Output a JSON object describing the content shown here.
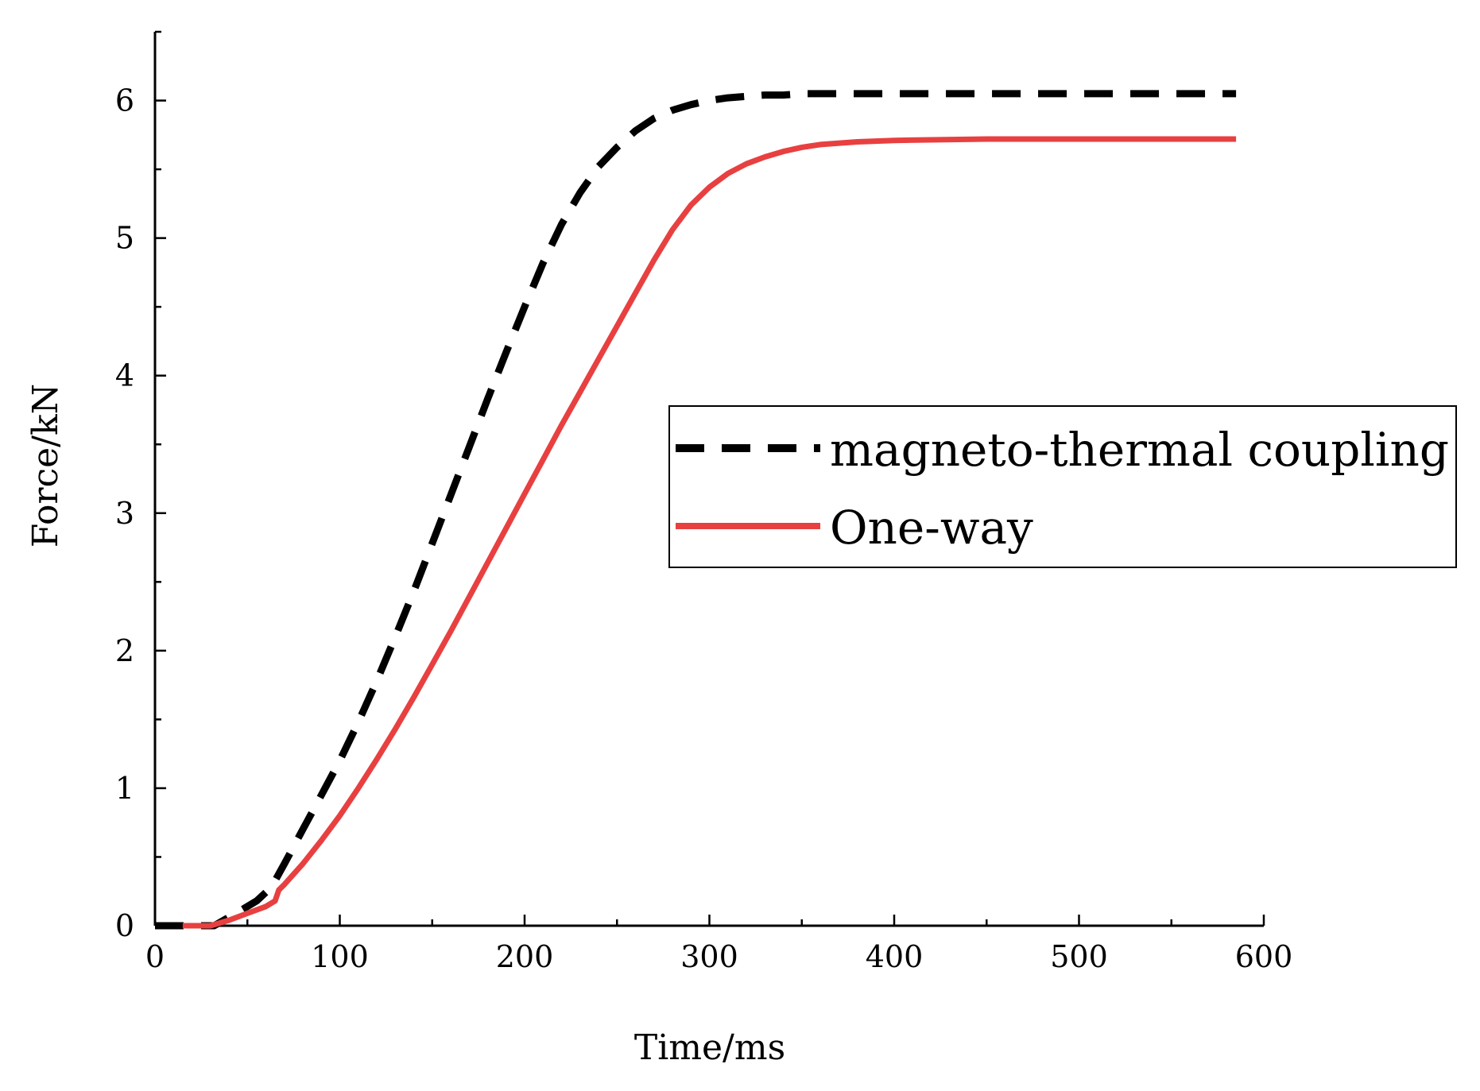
{
  "chart_data": {
    "type": "line",
    "title": "",
    "xlabel": "Time/ms",
    "ylabel": "Force/kN",
    "xlim": [
      0,
      600
    ],
    "ylim": [
      0,
      6.5
    ],
    "xticks": [
      0,
      100,
      200,
      300,
      400,
      500,
      600
    ],
    "xtick_labels": [
      "0",
      "100",
      "200",
      "300",
      "400",
      "500",
      "600"
    ],
    "yticks": [
      0,
      1,
      2,
      3,
      4,
      5,
      6
    ],
    "ytick_labels": [
      "0",
      "1",
      "2",
      "3",
      "4",
      "5",
      "6"
    ],
    "grid": false,
    "legend_position": "right-center",
    "series": [
      {
        "name": "magneto-thermal coupling",
        "color": "#000000",
        "style": "dashed",
        "x": [
          0,
          20,
          32,
          45,
          55,
          63,
          70,
          80,
          90,
          100,
          110,
          120,
          130,
          140,
          150,
          160,
          170,
          180,
          190,
          200,
          210,
          220,
          230,
          240,
          250,
          260,
          270,
          280,
          290,
          300,
          310,
          320,
          330,
          340,
          350,
          360,
          380,
          400,
          450,
          500,
          550,
          585
        ],
        "y": [
          0,
          0,
          0.0,
          0.1,
          0.18,
          0.28,
          0.45,
          0.7,
          0.95,
          1.2,
          1.48,
          1.78,
          2.1,
          2.43,
          2.78,
          3.13,
          3.48,
          3.83,
          4.17,
          4.5,
          4.82,
          5.1,
          5.33,
          5.52,
          5.66,
          5.78,
          5.87,
          5.93,
          5.97,
          6.0,
          6.02,
          6.03,
          6.04,
          6.04,
          6.05,
          6.05,
          6.05,
          6.05,
          6.05,
          6.05,
          6.05,
          6.05
        ]
      },
      {
        "name": "One-way",
        "color": "#e84040",
        "style": "solid",
        "x": [
          15,
          20,
          30,
          40,
          50,
          60,
          65,
          67,
          70,
          80,
          90,
          100,
          110,
          120,
          130,
          140,
          150,
          160,
          170,
          180,
          190,
          200,
          210,
          220,
          230,
          240,
          250,
          260,
          270,
          280,
          290,
          300,
          310,
          320,
          330,
          340,
          350,
          360,
          380,
          400,
          450,
          500,
          550,
          585
        ],
        "y": [
          0,
          0,
          0.0,
          0.04,
          0.09,
          0.14,
          0.18,
          0.26,
          0.3,
          0.45,
          0.62,
          0.8,
          1.0,
          1.21,
          1.43,
          1.66,
          1.9,
          2.14,
          2.39,
          2.64,
          2.89,
          3.14,
          3.39,
          3.64,
          3.88,
          4.12,
          4.36,
          4.6,
          4.84,
          5.06,
          5.24,
          5.37,
          5.47,
          5.54,
          5.59,
          5.63,
          5.66,
          5.68,
          5.7,
          5.71,
          5.72,
          5.72,
          5.72,
          5.72
        ]
      }
    ]
  }
}
